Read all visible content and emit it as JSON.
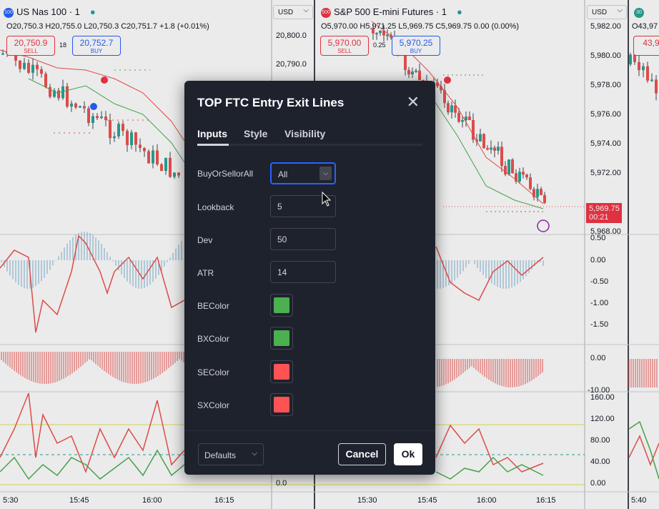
{
  "left_chart": {
    "symbol": "US Nas 100 · 1",
    "badge": "100",
    "ohlc": "O20,750.3 H20,755.0 L20,750.3 C20,751.7 +1.8 (+0.01%)",
    "sell_price": "20,750.9",
    "sell_label": "SELL",
    "buy_price": "20,752.7",
    "buy_label": "BUY",
    "spread": "18",
    "currency": "USD",
    "price_axis": [
      "20,800.0",
      "20,790.0"
    ],
    "bottom_axis": [
      "0.0"
    ],
    "time_axis": [
      "5:30",
      "15:45",
      "16:00",
      "16:15"
    ]
  },
  "mid_chart": {
    "symbol": "S&P 500 E-mini Futures · 1",
    "badge": "500",
    "ohlc": "O5,970.00 H5,971.25 L5,969.75 C5,969.75 0.00 (0.00%)",
    "sell_price": "5,970.00",
    "sell_label": "SELL",
    "buy_price": "5,970.25",
    "buy_label": "BUY",
    "spread": "0.25",
    "currency": "USD",
    "price_axis": [
      "5,982.00",
      "5,980.00",
      "5,978.00",
      "5,976.00",
      "5,974.00",
      "5,972.00",
      "5,968.00"
    ],
    "price_tag": "5,969.75",
    "price_tag_time": "00:21",
    "osc1_axis": [
      "0.50",
      "0.00",
      "-0.50",
      "-1.00",
      "-1.50"
    ],
    "osc2_axis": [
      "0.00",
      "-10.00"
    ],
    "osc3_axis": [
      "160.00",
      "120.00",
      "80.00",
      "40.00",
      "0.00"
    ],
    "time_axis": [
      "15:30",
      "15:45",
      "16:00",
      "16:15"
    ]
  },
  "right_chart": {
    "badge": "30",
    "ohlc": "O43,97",
    "sell_price": "43,9",
    "time_axis": [
      "5:40"
    ]
  },
  "dialog": {
    "title": "TOP FTC Entry Exit Lines",
    "tabs": [
      "Inputs",
      "Style",
      "Visibility"
    ],
    "fields": {
      "buyorsellorall": {
        "label": "BuyOrSellorAll",
        "value": "All"
      },
      "lookback": {
        "label": "Lookback",
        "value": "5"
      },
      "dev": {
        "label": "Dev",
        "value": "50"
      },
      "atr": {
        "label": "ATR",
        "value": "14"
      },
      "becolor": {
        "label": "BEColor",
        "color": "#4caf50"
      },
      "bxcolor": {
        "label": "BXColor",
        "color": "#4caf50"
      },
      "secolor": {
        "label": "SEColor",
        "color": "#ff5252"
      },
      "sxcolor": {
        "label": "SXColor",
        "color": "#ff5252"
      }
    },
    "defaults_label": "Defaults",
    "cancel_label": "Cancel",
    "ok_label": "Ok"
  },
  "colors": {
    "up": "#26a69a",
    "down": "#ef5350",
    "dialog_bg": "#1e222d",
    "accent": "#2962ff"
  }
}
